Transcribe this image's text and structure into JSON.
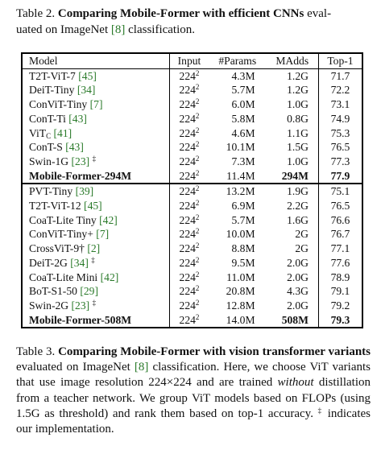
{
  "table2_caption": {
    "label": "Table 2.",
    "title": "Comparing Mobile-Former with efficient CNNs",
    "rest_a": "eval-",
    "rest_b": "uated on ImageNet",
    "cite": "[8]",
    "rest_c": "classification."
  },
  "table": {
    "headers": [
      "Model",
      "Input",
      "#Params",
      "MAdds",
      "Top-1"
    ],
    "input_base": "224",
    "input_exp": "2",
    "group1": [
      {
        "model": "T2T-ViT-7",
        "cite": "[45]",
        "sup": "",
        "params": "4.3M",
        "madds": "1.2G",
        "top1": "71.7",
        "bold": false
      },
      {
        "model": "DeiT-Tiny",
        "cite": "[34]",
        "sup": "",
        "params": "5.7M",
        "madds": "1.2G",
        "top1": "72.2",
        "bold": false
      },
      {
        "model": "ConViT-Tiny",
        "cite": "[7]",
        "sup": "",
        "params": "6.0M",
        "madds": "1.0G",
        "top1": "73.1",
        "bold": false
      },
      {
        "model": "ConT-Ti",
        "cite": "[43]",
        "sup": "",
        "params": "5.8M",
        "madds": "0.8G",
        "top1": "74.9",
        "bold": false
      },
      {
        "model": "ViT",
        "sub": "C",
        "cite": "[41]",
        "sup": "",
        "params": "4.6M",
        "madds": "1.1G",
        "top1": "75.3",
        "bold": false
      },
      {
        "model": "ConT-S",
        "cite": "[43]",
        "sup": "",
        "params": "10.1M",
        "madds": "1.5G",
        "top1": "76.5",
        "bold": false
      },
      {
        "model": "Swin-1G",
        "cite": "[23]",
        "sup": "‡",
        "params": "7.3M",
        "madds": "1.0G",
        "top1": "77.3",
        "bold": false
      },
      {
        "model": "Mobile-Former-294M",
        "cite": "",
        "sup": "",
        "params": "11.4M",
        "madds": "294M",
        "top1": "77.9",
        "bold": true
      }
    ],
    "group2": [
      {
        "model": "PVT-Tiny",
        "cite": "[39]",
        "sup": "",
        "params": "13.2M",
        "madds": "1.9G",
        "top1": "75.1",
        "bold": false
      },
      {
        "model": "T2T-ViT-12",
        "cite": "[45]",
        "sup": "",
        "params": "6.9M",
        "madds": "2.2G",
        "top1": "76.5",
        "bold": false
      },
      {
        "model": "CoaT-Lite Tiny",
        "cite": "[42]",
        "sup": "",
        "params": "5.7M",
        "madds": "1.6G",
        "top1": "76.6",
        "bold": false
      },
      {
        "model": "ConViT-Tiny+",
        "cite": "[7]",
        "sup": "",
        "params": "10.0M",
        "madds": "2G",
        "top1": "76.7",
        "bold": false
      },
      {
        "model": "CrossViT-9†",
        "cite": "[2]",
        "sup": "",
        "params": "8.8M",
        "madds": "2G",
        "top1": "77.1",
        "bold": false
      },
      {
        "model": "DeiT-2G",
        "cite": "[34]",
        "sup": "‡",
        "params": "9.5M",
        "madds": "2.0G",
        "top1": "77.6",
        "bold": false
      },
      {
        "model": "CoaT-Lite Mini",
        "cite": "[42]",
        "sup": "",
        "params": "11.0M",
        "madds": "2.0G",
        "top1": "78.9",
        "bold": false
      },
      {
        "model": "BoT-S1-50",
        "cite": "[29]",
        "sup": "",
        "params": "20.8M",
        "madds": "4.3G",
        "top1": "79.1",
        "bold": false
      },
      {
        "model": "Swin-2G",
        "cite": "[23]",
        "sup": "‡",
        "params": "12.8M",
        "madds": "2.0G",
        "top1": "79.2",
        "bold": false
      },
      {
        "model": "Mobile-Former-508M",
        "cite": "",
        "sup": "",
        "params": "14.0M",
        "madds": "508M",
        "top1": "79.3",
        "bold": true
      }
    ]
  },
  "table3_caption": {
    "label": "Table 3.",
    "title": "Comparing Mobile-Former with vision transformer variants",
    "t1": "evaluated on ImageNet",
    "cite": "[8]",
    "t2": "classification. Here, we choose ViT variants that use image resolution 224×224 and are trained",
    "em": "without",
    "t3": "distillation from a teacher network. We group ViT models based on FLOPs (using 1.5G as threshold) and rank them based on top-1 accuracy.",
    "dagger": "‡",
    "t4": "indicates our implementation."
  },
  "colors": {
    "citation": "#2a7a2a",
    "text": "#111111"
  }
}
